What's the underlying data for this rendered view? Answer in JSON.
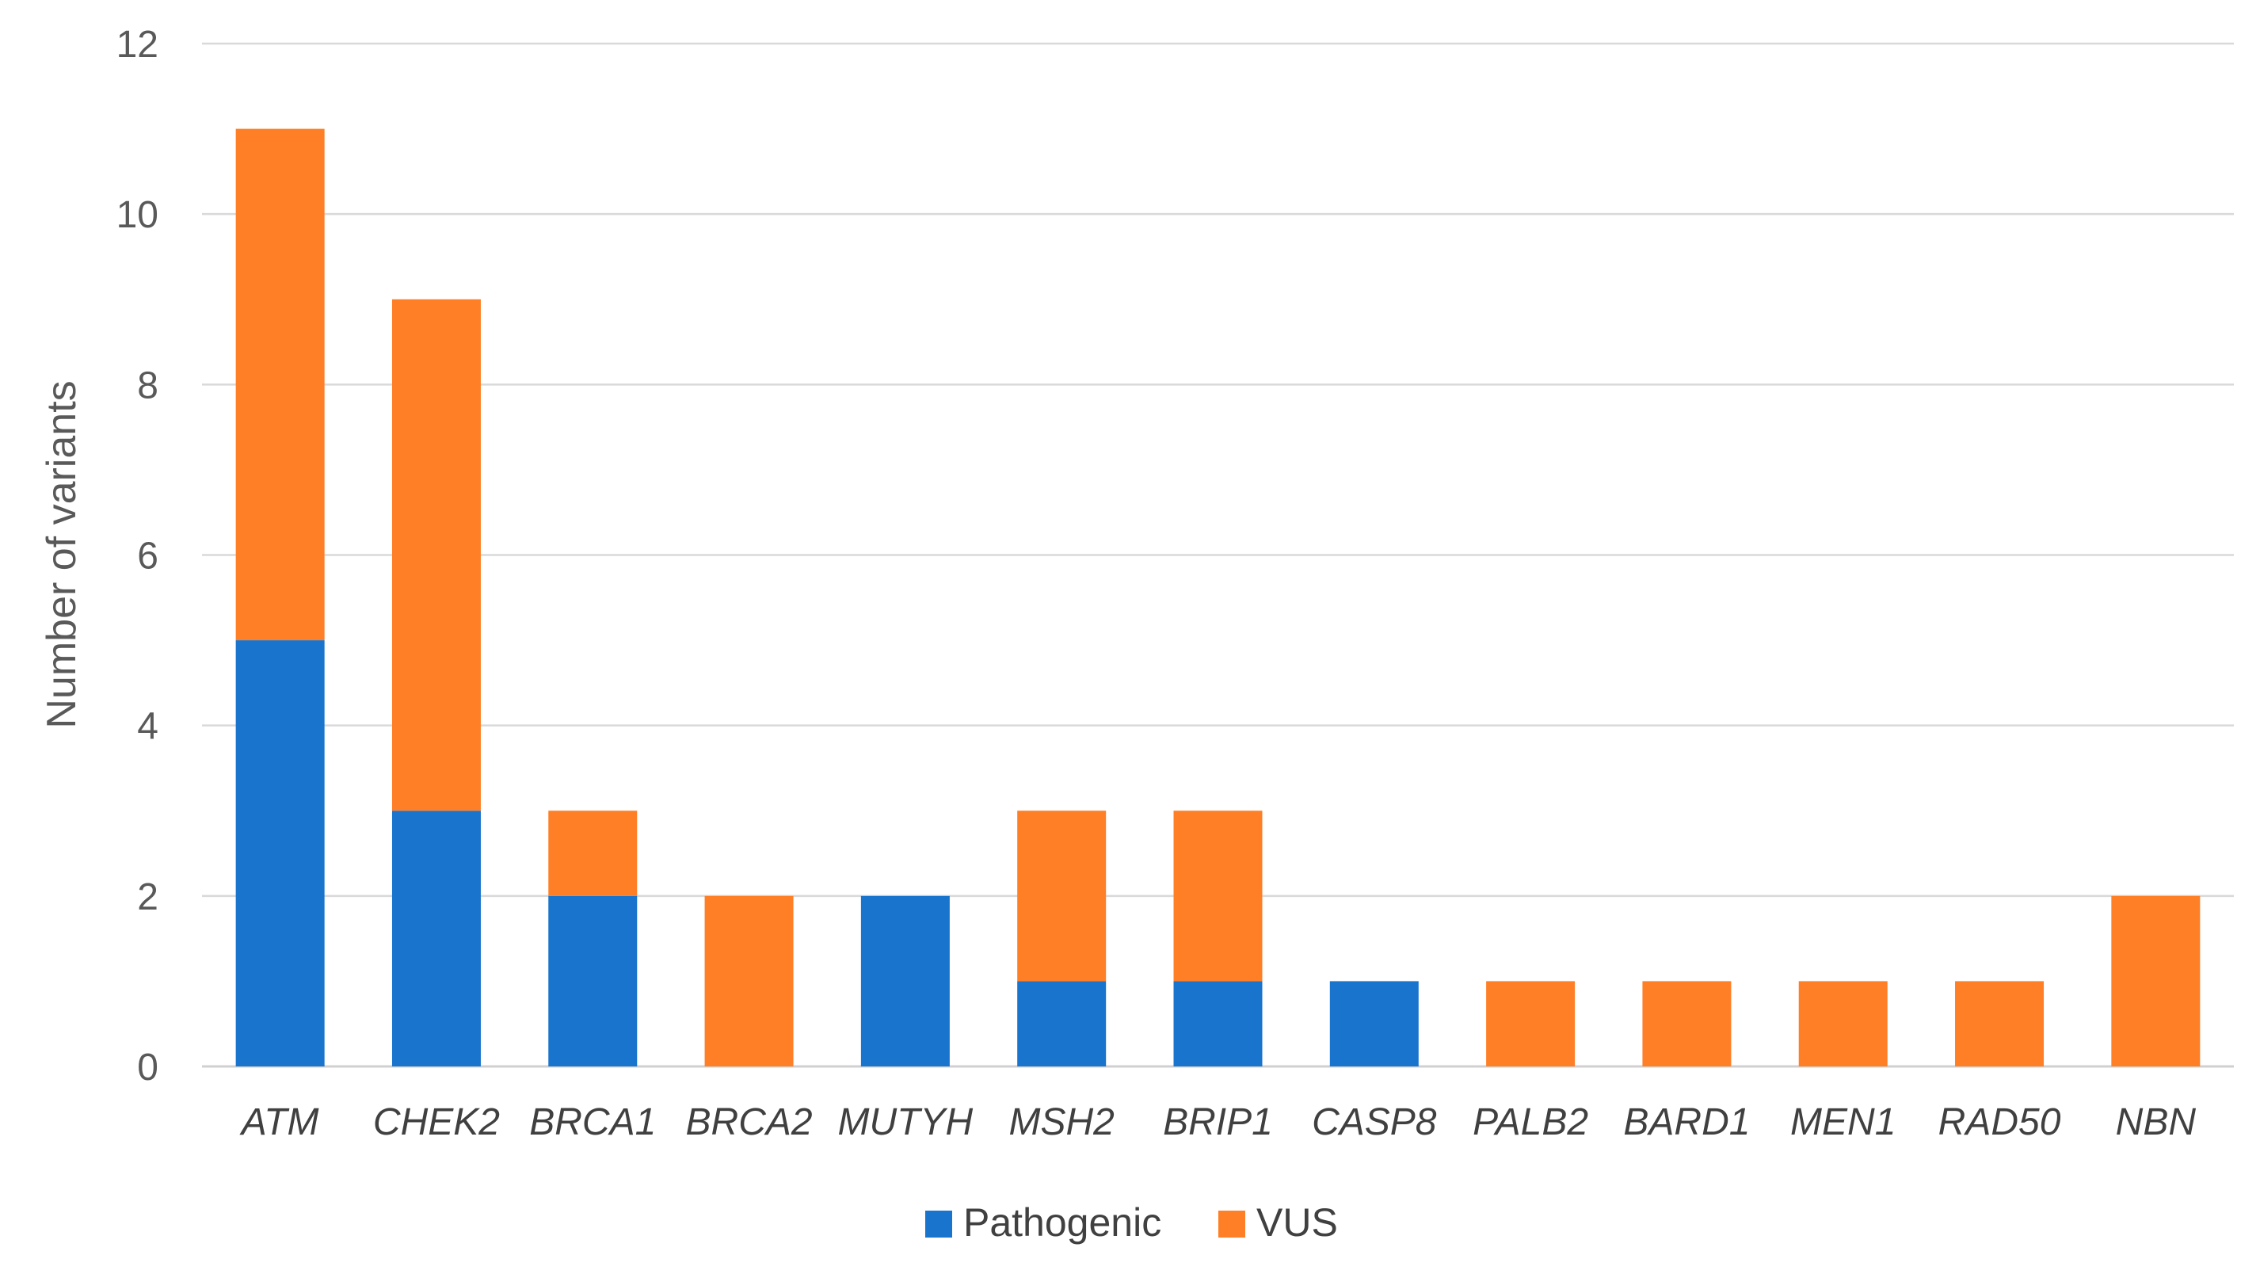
{
  "chart_data": {
    "type": "bar",
    "stacked": true,
    "title": "",
    "xlabel": "",
    "ylabel": "Number of variants",
    "ylim": [
      0,
      12
    ],
    "yticks": [
      0,
      2,
      4,
      6,
      8,
      10,
      12
    ],
    "grid": true,
    "legend_position": "bottom",
    "categories": [
      "ATM",
      "CHEK2",
      "BRCA1",
      "BRCA2",
      "MUTYH",
      "MSH2",
      "BRIP1",
      "CASP8",
      "PALB2",
      "BARD1",
      "MEN1",
      "RAD50",
      "NBN"
    ],
    "series": [
      {
        "name": "Pathogenic",
        "color": "#1874CD",
        "values": [
          5,
          3,
          2,
          0,
          2,
          1,
          1,
          1,
          0,
          0,
          0,
          0,
          0
        ]
      },
      {
        "name": "VUS",
        "color": "#FF7F27",
        "values": [
          6,
          6,
          1,
          2,
          0,
          2,
          2,
          0,
          1,
          1,
          1,
          1,
          2
        ]
      }
    ]
  }
}
